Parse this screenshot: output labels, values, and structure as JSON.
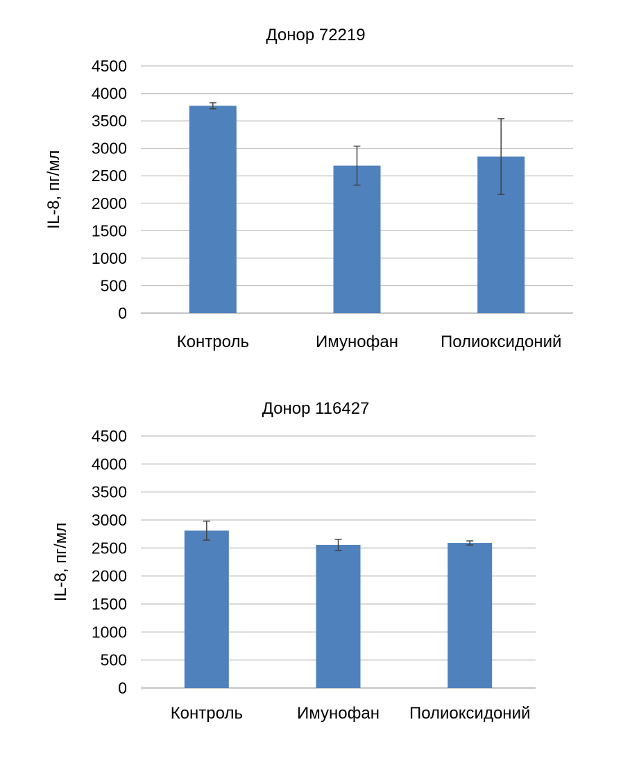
{
  "colors": {
    "bar": "#4f81bd",
    "grid": "#c0c0c0",
    "error_bar": "#404040"
  },
  "chart_data": [
    {
      "type": "bar",
      "title": "Донор 72219",
      "ylabel": "IL-8, пг/мл",
      "xlabel": "",
      "ylim": [
        0,
        4500
      ],
      "yticks": [
        0,
        500,
        1000,
        1500,
        2000,
        2500,
        3000,
        3500,
        4000,
        4500
      ],
      "grid": true,
      "categories": [
        "Контроль",
        "Имунофан",
        "Полиоксидоний"
      ],
      "values": [
        3775,
        2685,
        2850
      ],
      "errors": [
        55,
        355,
        690
      ]
    },
    {
      "type": "bar",
      "title": "Донор 116427",
      "ylabel": "IL-8, пг/мл",
      "xlabel": "",
      "ylim": [
        0,
        4500
      ],
      "yticks": [
        0,
        500,
        1000,
        1500,
        2000,
        2500,
        3000,
        3500,
        4000,
        4500
      ],
      "grid": true,
      "categories": [
        "Контроль",
        "Имунофан",
        "Полиоксидоний"
      ],
      "values": [
        2810,
        2555,
        2590
      ],
      "errors": [
        170,
        100,
        37
      ]
    }
  ]
}
